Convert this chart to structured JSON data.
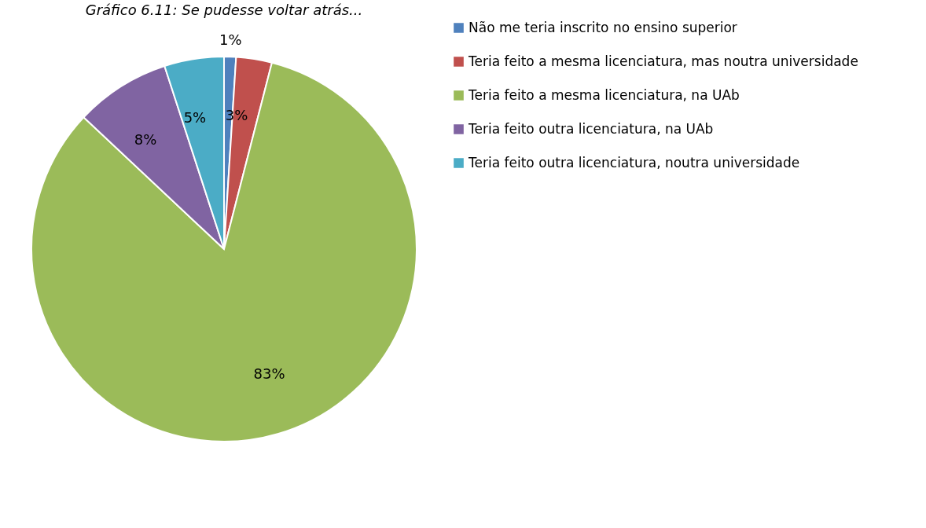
{
  "chart_data": {
    "type": "pie",
    "title": "Gráfico 6.11: Se pudesse voltar atrás...",
    "categories": [
      "Não me teria inscrito no ensino superior",
      "Teria feito a mesma licenciatura, mas noutra universidade",
      "Teria feito a mesma licenciatura, na UAb",
      "Teria feito outra licenciatura, na UAb",
      "Teria feito outra licenciatura, noutra universidade"
    ],
    "values": [
      1,
      3,
      83,
      8,
      5
    ],
    "colors": [
      "#4f81bd",
      "#c0504d",
      "#9bbb59",
      "#8064a2",
      "#4bacc6"
    ],
    "value_labels": [
      "1%",
      "3%",
      "83%",
      "8%",
      "5%"
    ],
    "legend": "right"
  }
}
